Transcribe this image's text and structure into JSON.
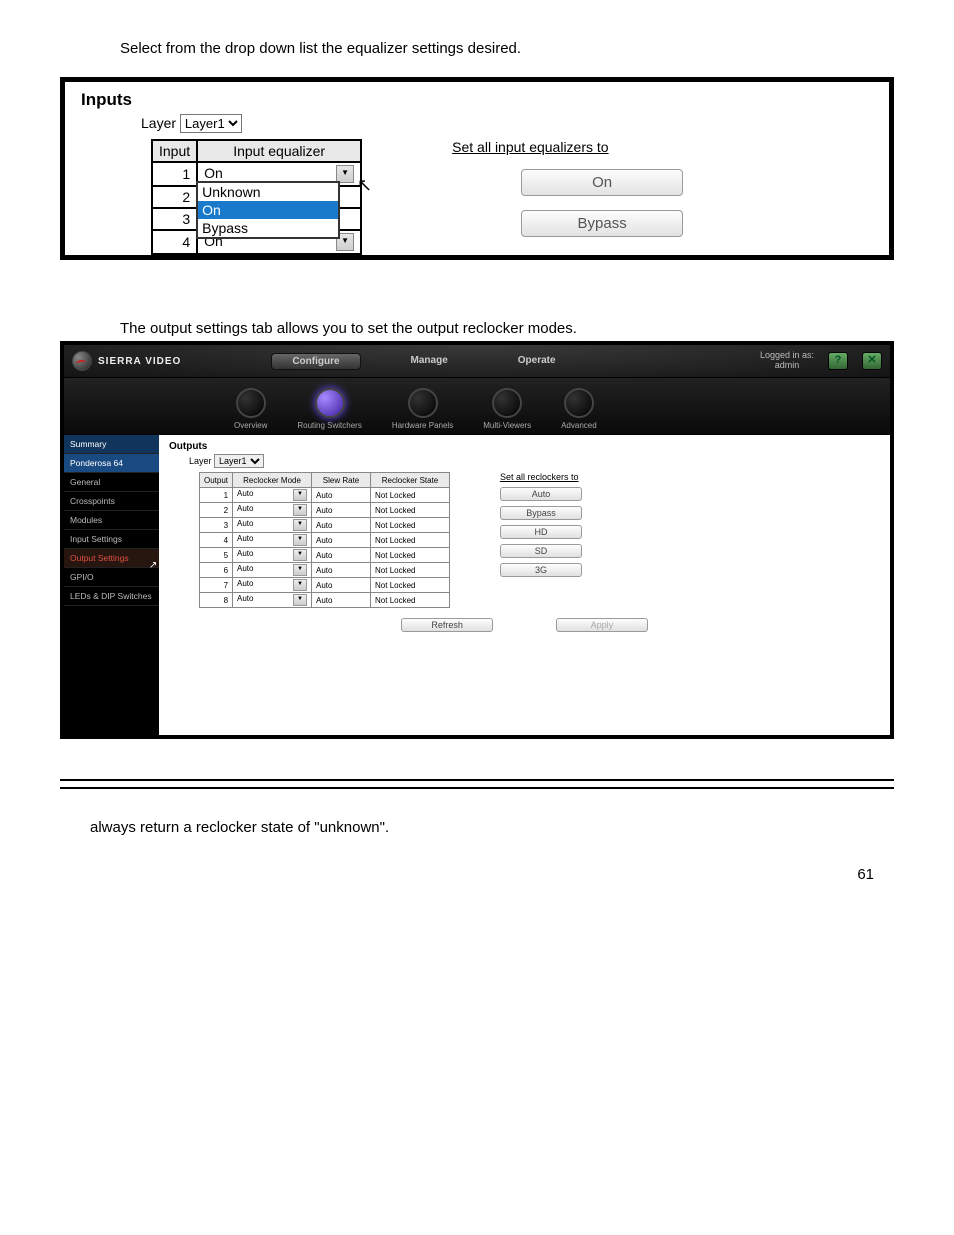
{
  "page_number": "61",
  "instruction1": "Select from the drop down list the equalizer settings desired.",
  "panel1": {
    "title": "Inputs",
    "layer_label": "Layer",
    "layer_value": "Layer1",
    "headers": {
      "col1": "Input",
      "col2": "Input equalizer"
    },
    "rows": [
      {
        "n": "1",
        "v": "On",
        "dropdown": true
      },
      {
        "n": "2",
        "v": "On"
      },
      {
        "n": "3",
        "v": "On"
      },
      {
        "n": "4",
        "v": "On"
      }
    ],
    "dropdown_options": [
      "Unknown",
      "On",
      "Bypass"
    ],
    "dropdown_highlight": "On",
    "set_all_label": "Set all input equalizers to",
    "buttons": [
      "On",
      "Bypass"
    ]
  },
  "instruction2": "The output settings tab allows you to set the output reclocker modes.",
  "panel2": {
    "brand": "SIERRA VIDEO",
    "top_tabs": [
      "Configure",
      "Manage",
      "Operate"
    ],
    "top_active": "Configure",
    "login": {
      "l1": "Logged in as:",
      "l2": "admin"
    },
    "help_icon": "?",
    "exit_icon": "⤴",
    "subnav": [
      "Overview",
      "Routing Switchers",
      "Hardware Panels",
      "Multi-Viewers",
      "Advanced"
    ],
    "subnav_active": "Routing Switchers",
    "sidebar": [
      "Summary",
      "Ponderosa 64",
      "General",
      "Crosspoints",
      "Modules",
      "Input Settings",
      "Output Settings",
      "GPI/O",
      "LEDs & DIP Switches"
    ],
    "sidebar_active": "Output Settings",
    "sidebar_sum": "Summary",
    "main_title": "Outputs",
    "layer_label": "Layer",
    "layer_value": "Layer1",
    "headers": {
      "c1": "Output",
      "c2": "Reclocker Mode",
      "c3": "Slew Rate",
      "c4": "Reclocker State"
    },
    "rows": [
      {
        "n": "1",
        "mode": "Auto",
        "slew": "Auto",
        "state": "Not Locked"
      },
      {
        "n": "2",
        "mode": "Auto",
        "slew": "Auto",
        "state": "Not Locked"
      },
      {
        "n": "3",
        "mode": "Auto",
        "slew": "Auto",
        "state": "Not Locked"
      },
      {
        "n": "4",
        "mode": "Auto",
        "slew": "Auto",
        "state": "Not Locked"
      },
      {
        "n": "5",
        "mode": "Auto",
        "slew": "Auto",
        "state": "Not Locked"
      },
      {
        "n": "6",
        "mode": "Auto",
        "slew": "Auto",
        "state": "Not Locked"
      },
      {
        "n": "7",
        "mode": "Auto",
        "slew": "Auto",
        "state": "Not Locked"
      },
      {
        "n": "8",
        "mode": "Auto",
        "slew": "Auto",
        "state": "Not Locked"
      }
    ],
    "set_all_label": "Set all reclockers to",
    "buttons": [
      "Auto",
      "Bypass",
      "HD",
      "SD",
      "3G"
    ],
    "footer": {
      "refresh": "Refresh",
      "apply": "Apply"
    }
  },
  "instruction3": "always return a reclocker state of \"unknown\".",
  "colors": {
    "border": "#000000",
    "highlight_blue": "#1979ca",
    "sidebar_bg": "#000000",
    "sidebar_hl": "#11345c",
    "sidebar_red": "#e05040",
    "orb_active": "#6a4aff",
    "btn_bg": "#e2e2e2"
  }
}
